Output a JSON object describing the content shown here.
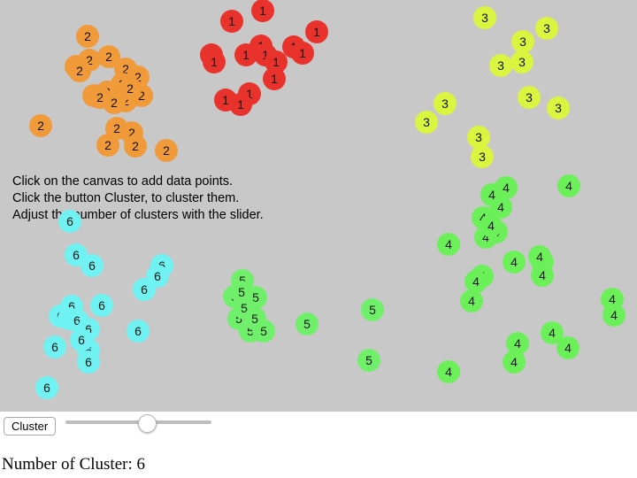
{
  "canvas": {
    "background": "#c8c8c8",
    "instructions": [
      "Click on the canvas to add data points.",
      "Click the button Cluster, to cluster them.",
      "Adjust the number of clusters with the slider."
    ]
  },
  "cluster_colors": {
    "1": "#e8322b",
    "2": "#f09a3a",
    "3": "#d9f540",
    "4": "#6cf05a",
    "5": "#70f06a",
    "6": "#70f2f2"
  },
  "controls": {
    "cluster_button_label": "Cluster",
    "slider": {
      "min": 1,
      "max": 10,
      "value": 6
    }
  },
  "status": {
    "label": "Number of Cluster:",
    "value": "6"
  },
  "clusters": [
    {
      "label": "1",
      "count": 15
    },
    {
      "label": "2",
      "count": 21
    },
    {
      "label": "3",
      "count": 11
    },
    {
      "label": "4",
      "count": 23
    },
    {
      "label": "5",
      "count": 13
    },
    {
      "label": "6",
      "count": 18
    }
  ]
}
